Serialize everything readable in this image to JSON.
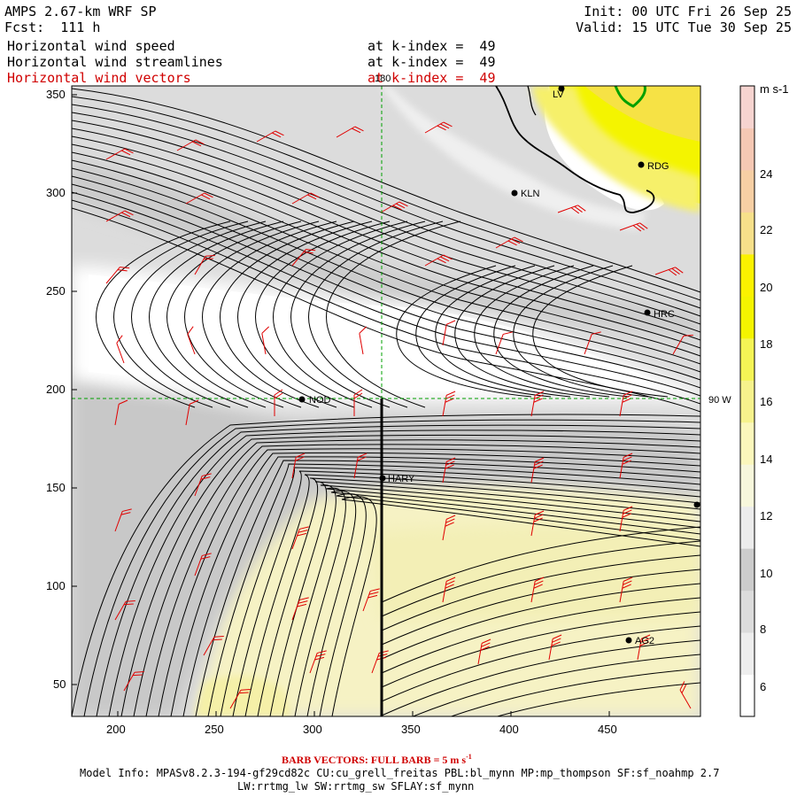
{
  "header": {
    "model": "AMPS 2.67-km WRF SP",
    "fcst": "Fcst:  111 h",
    "init": "Init: 00 UTC Fri 26 Sep 25",
    "valid": "Valid: 15 UTC Tue 30 Sep 25",
    "fields": [
      {
        "name": "Horizontal wind speed",
        "level": "at k-index =  49",
        "color": "#000000"
      },
      {
        "name": "Horizontal wind streamlines",
        "level": "at k-index =  49",
        "color": "#000000"
      },
      {
        "name": "Horizontal wind vectors",
        "level": "at k-index =  49",
        "color": "#d00000"
      }
    ]
  },
  "map": {
    "x_ticks": [
      "200",
      "250",
      "300",
      "350",
      "400",
      "450"
    ],
    "y_ticks": [
      "350",
      "300",
      "250",
      "200",
      "150",
      "100",
      "50"
    ],
    "meridian_label": "180",
    "parallel_label": "90 W",
    "stations": [
      {
        "id": "LV",
        "label": "LV"
      },
      {
        "id": "RDG",
        "label": "RDG"
      },
      {
        "id": "KLN",
        "label": "KLN"
      },
      {
        "id": "HRC",
        "label": "HRC"
      },
      {
        "id": "NOD",
        "label": "NOD"
      },
      {
        "id": "HARY",
        "label": "HARY"
      },
      {
        "id": "AG2",
        "label": "AG2"
      },
      {
        "id": "EDGE",
        "label": ""
      }
    ]
  },
  "colorbar": {
    "units": "m s-1",
    "labels": [
      "24",
      "22",
      "20",
      "18",
      "16",
      "14",
      "12",
      "10",
      "8",
      "6"
    ],
    "colors": [
      "#ffffff",
      "#eeeeee",
      "#dcdcdc",
      "#cccccc",
      "#ececec",
      "#f7f7dc",
      "#fbf7bc",
      "#f6f28c",
      "#f4f455",
      "#f4f400",
      "#fbf200",
      "#f6e08a",
      "#f6cfa4",
      "#f5c8b4",
      "#f6d4d0"
    ]
  },
  "footer": {
    "barb_note": "BARB VECTORS:  FULL BARB = 5 m s",
    "barb_unit_sup": "-1",
    "model_info_1": "Model Info: MPASv8.2.3-194-gf29cd82c CU:cu_grell_freitas PBL:bl_mynn MP:mp_thompson SF:sf_noahmp 2.7",
    "model_info_2": "LW:rrtmg_lw SW:rrtmg_sw SFLAY:sf_mynn"
  }
}
